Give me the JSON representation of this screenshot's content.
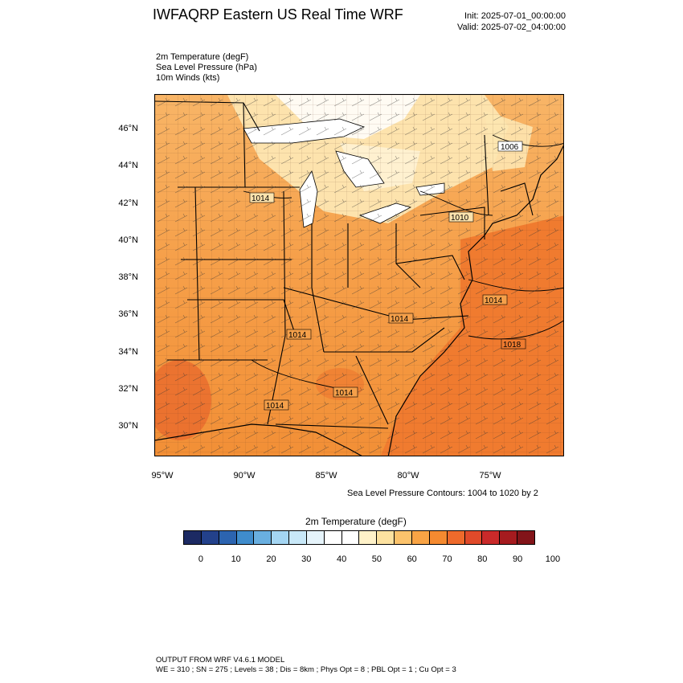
{
  "header": {
    "title": "IWFAQRP Eastern US Real Time WRF",
    "init": "Init: 2025-07-01_00:00:00",
    "valid": "Valid: 2025-07-02_04:00:00"
  },
  "fields": [
    "2m Temperature   (degF)",
    "Sea Level Pressure   (hPa)",
    "10m Winds   (kts)"
  ],
  "map": {
    "lat_labels": [
      "46°N",
      "44°N",
      "42°N",
      "40°N",
      "38°N",
      "36°N",
      "34°N",
      "32°N",
      "30°N"
    ],
    "lon_labels": [
      "95°W",
      "90°W",
      "85°W",
      "80°W",
      "75°W"
    ],
    "pressure_labels": [
      "1006",
      "1014",
      "1010",
      "1014",
      "1014",
      "1014",
      "1018",
      "1014",
      "1014"
    ],
    "contour_note": "Sea Level Pressure Contours: 1004 to 1020 by 2"
  },
  "colorbar": {
    "title": "2m Temperature  (degF)",
    "labels": [
      "0",
      "10",
      "20",
      "30",
      "40",
      "50",
      "60",
      "70",
      "80",
      "90",
      "100"
    ],
    "colors": [
      "#1c2a63",
      "#23418b",
      "#2c64b0",
      "#3f8ccc",
      "#69afe0",
      "#a4d5f2",
      "#c8e8f8",
      "#e6f4fb",
      "#ffffff",
      "#ffffff",
      "#fff2c9",
      "#fde2a0",
      "#fcc36c",
      "#f9a445",
      "#f58a30",
      "#ee6a2b",
      "#e04a2a",
      "#c92a2a",
      "#a51b1f",
      "#821419"
    ]
  },
  "footer": {
    "line1": "OUTPUT FROM WRF V4.6.1 MODEL",
    "line2": "WE = 310 ; SN = 275 ; Levels = 38 ; Dis = 8km ; Phys Opt = 8 ; PBL Opt = 1 ; Cu Opt = 3"
  }
}
